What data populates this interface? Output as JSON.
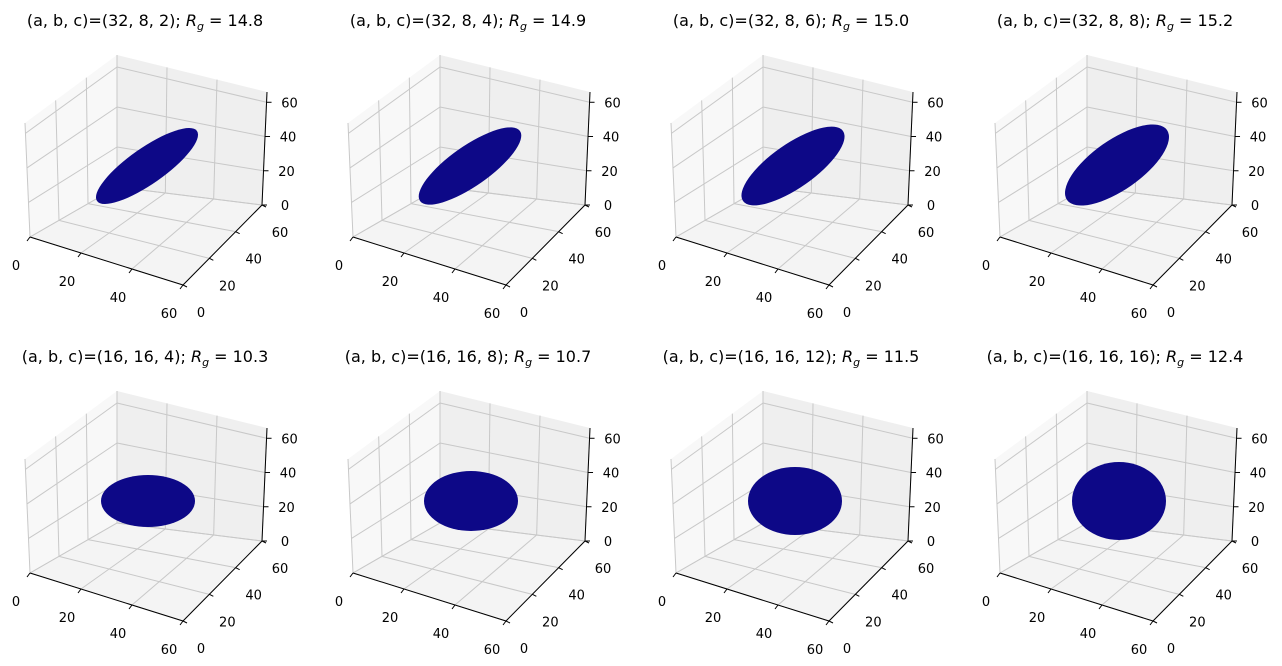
{
  "chart_data": [
    {
      "type": "scatter3d",
      "title_prefix": "(a, b, c)=(32, 8, 2); ",
      "rg_label": "R",
      "rg_sub": "g",
      "rg_value": "14.8",
      "params": [
        32,
        8,
        2
      ],
      "Rg": 14.8,
      "semi_axes_display": [
        61,
        18
      ]
    },
    {
      "type": "scatter3d",
      "title_prefix": "(a, b, c)=(32, 8, 4); ",
      "rg_label": "R",
      "rg_sub": "g",
      "rg_value": "14.9",
      "params": [
        32,
        8,
        4
      ],
      "Rg": 14.9,
      "semi_axes_display": [
        61,
        20
      ]
    },
    {
      "type": "scatter3d",
      "title_prefix": "(a, b, c)=(32, 8, 6); ",
      "rg_label": "R",
      "rg_sub": "g",
      "rg_value": "15.0",
      "params": [
        32,
        8,
        6
      ],
      "Rg": 15.0,
      "semi_axes_display": [
        61,
        22
      ]
    },
    {
      "type": "scatter3d",
      "title_prefix": "(a, b, c)=(32, 8, 8); ",
      "rg_label": "R",
      "rg_sub": "g",
      "rg_value": "15.2",
      "params": [
        32,
        8,
        8
      ],
      "Rg": 15.2,
      "semi_axes_display": [
        61,
        25
      ]
    },
    {
      "type": "scatter3d",
      "title_prefix": "(a, b, c)=(16, 16, 4); ",
      "rg_label": "R",
      "rg_sub": "g",
      "rg_value": "10.3",
      "params": [
        16,
        16,
        4
      ],
      "Rg": 10.3,
      "semi_axes_display": [
        47,
        26
      ]
    },
    {
      "type": "scatter3d",
      "title_prefix": "(a, b, c)=(16, 16, 8); ",
      "rg_label": "R",
      "rg_sub": "g",
      "rg_value": "10.7",
      "params": [
        16,
        16,
        8
      ],
      "Rg": 10.7,
      "semi_axes_display": [
        47,
        30
      ]
    },
    {
      "type": "scatter3d",
      "title_prefix": "(a, b, c)=(16, 16, 12); ",
      "rg_label": "R",
      "rg_sub": "g",
      "rg_value": "11.5",
      "params": [
        16,
        16,
        12
      ],
      "Rg": 11.5,
      "semi_axes_display": [
        47,
        34
      ]
    },
    {
      "type": "scatter3d",
      "title_prefix": "(a, b, c)=(16, 16, 16); ",
      "rg_label": "R",
      "rg_sub": "g",
      "rg_value": "12.4",
      "params": [
        16,
        16,
        16
      ],
      "Rg": 12.4,
      "semi_axes_display": [
        47,
        39
      ]
    }
  ],
  "axes": {
    "xticks": [
      "0",
      "20",
      "40",
      "60"
    ],
    "yticks": [
      "0",
      "20",
      "40",
      "60"
    ],
    "zticks": [
      "0",
      "20",
      "40",
      "60"
    ],
    "xlim": [
      0,
      60
    ],
    "ylim": [
      0,
      60
    ],
    "zlim": [
      0,
      66
    ]
  },
  "colors": {
    "marker": "#0d0887",
    "pane_left": "#f8f8f8",
    "pane_back": "#efefef",
    "pane_floor": "#f4f4f4",
    "grid": "#c8c8c8"
  }
}
